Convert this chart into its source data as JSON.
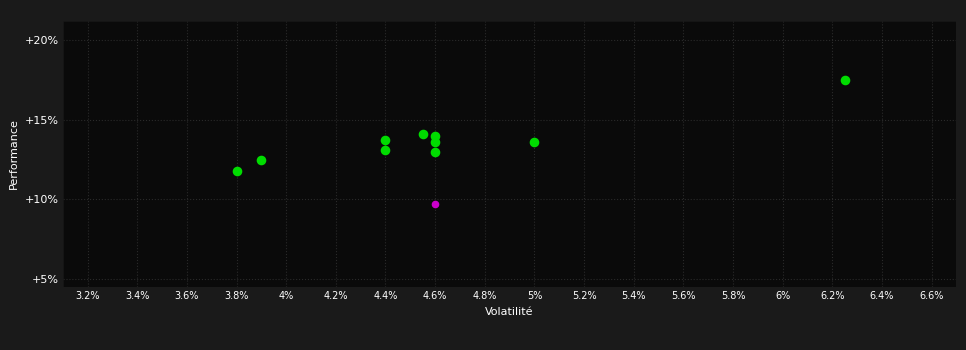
{
  "background_color": "#1a1a1a",
  "plot_bg_color": "#0a0a0a",
  "grid_color": "#2a2a2a",
  "text_color": "#ffffff",
  "xlabel": "Volatilité",
  "ylabel": "Performance",
  "xlim": [
    0.031,
    0.067
  ],
  "ylim": [
    0.045,
    0.212
  ],
  "xticks": [
    0.032,
    0.034,
    0.036,
    0.038,
    0.04,
    0.042,
    0.044,
    0.046,
    0.048,
    0.05,
    0.052,
    0.054,
    0.056,
    0.058,
    0.06,
    0.062,
    0.064,
    0.066
  ],
  "yticks": [
    0.05,
    0.1,
    0.15,
    0.2
  ],
  "ytick_labels": [
    "+5%",
    "+10%",
    "+15%",
    "+20%"
  ],
  "green_points": [
    [
      0.038,
      0.118
    ],
    [
      0.039,
      0.125
    ],
    [
      0.044,
      0.131
    ],
    [
      0.044,
      0.137
    ],
    [
      0.0455,
      0.141
    ],
    [
      0.046,
      0.14
    ],
    [
      0.046,
      0.136
    ],
    [
      0.046,
      0.13
    ],
    [
      0.05,
      0.136
    ],
    [
      0.0625,
      0.175
    ]
  ],
  "magenta_point": [
    0.046,
    0.097
  ],
  "green_color": "#00dd00",
  "magenta_color": "#cc00cc",
  "point_size": 35,
  "magenta_size": 20,
  "figsize": [
    9.66,
    3.5
  ],
  "dpi": 100
}
